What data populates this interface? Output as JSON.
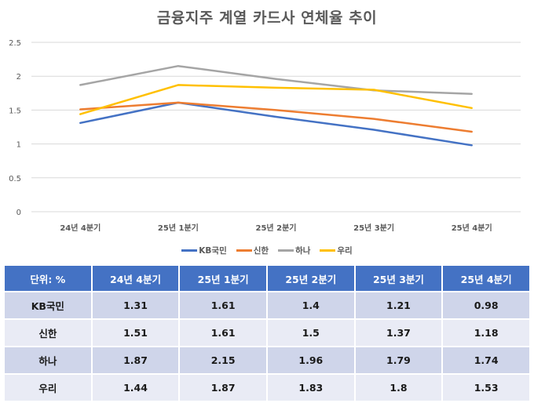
{
  "chart_data": {
    "type": "line",
    "title": "금융지주 계열 카드사 연체율 추이",
    "xlabel": "",
    "ylabel": "",
    "categories": [
      "24년 4분기",
      "25년 1분기",
      "25년 2분기",
      "25년 3분기",
      "25년 4분기"
    ],
    "ylim": [
      0,
      2.5
    ],
    "yticks": [
      "0",
      "0.5",
      "1",
      "1.5",
      "2",
      "2.5"
    ],
    "ytick_values": [
      0,
      0.5,
      1,
      1.5,
      2,
      2.5
    ],
    "grid": true,
    "legend_position": "bottom",
    "series": [
      {
        "name": "KB국민",
        "color": "#4472c4",
        "values": [
          1.31,
          1.61,
          1.4,
          1.21,
          0.98
        ]
      },
      {
        "name": "신한",
        "color": "#ed7d31",
        "values": [
          1.51,
          1.61,
          1.5,
          1.37,
          1.18
        ]
      },
      {
        "name": "하나",
        "color": "#a5a5a5",
        "values": [
          1.87,
          2.15,
          1.96,
          1.79,
          1.74
        ]
      },
      {
        "name": "우리",
        "color": "#ffc000",
        "values": [
          1.44,
          1.87,
          1.83,
          1.8,
          1.53
        ]
      }
    ]
  },
  "table": {
    "unit_label": "단위: %",
    "headers": [
      "24년 4분기",
      "25년 1분기",
      "25년 2분기",
      "25년 3분기",
      "25년 4분기"
    ],
    "rows": [
      {
        "label": "KB국민",
        "values": [
          "1.31",
          "1.61",
          "1.4",
          "1.21",
          "0.98"
        ]
      },
      {
        "label": "신한",
        "values": [
          "1.51",
          "1.61",
          "1.5",
          "1.37",
          "1.18"
        ]
      },
      {
        "label": "하나",
        "values": [
          "1.87",
          "2.15",
          "1.96",
          "1.79",
          "1.74"
        ]
      },
      {
        "label": "우리",
        "values": [
          "1.44",
          "1.87",
          "1.83",
          "1.8",
          "1.53"
        ]
      }
    ]
  },
  "colors": {
    "header_bg": "#4472c4",
    "row_odd": "#cfd5ea",
    "row_even": "#e9ebf5",
    "gridline": "#d9d9d9",
    "axis_text": "#595959"
  }
}
